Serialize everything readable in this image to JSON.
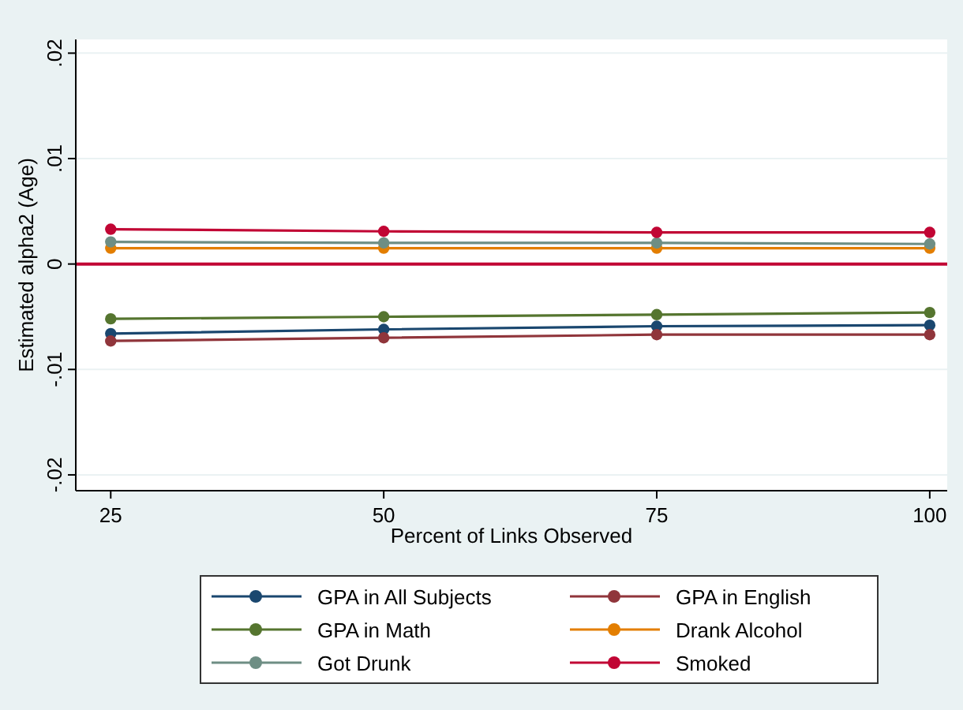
{
  "chart_data": {
    "type": "line",
    "xlabel": "Percent of Links Observed",
    "ylabel": "Estimated alpha2 (Age)",
    "x": [
      25,
      50,
      75,
      100
    ],
    "series": [
      {
        "name": "GPA in All Subjects",
        "color": "#1a476f",
        "values": [
          -0.0066,
          -0.0062,
          -0.0059,
          -0.0058
        ]
      },
      {
        "name": "GPA in English",
        "color": "#90353b",
        "values": [
          -0.0073,
          -0.007,
          -0.0067,
          -0.0067
        ]
      },
      {
        "name": "GPA in Math",
        "color": "#55752f",
        "values": [
          -0.0052,
          -0.005,
          -0.0048,
          -0.0046
        ]
      },
      {
        "name": "Drank Alcohol",
        "color": "#e37e00",
        "values": [
          0.0015,
          0.0015,
          0.0015,
          0.0015
        ]
      },
      {
        "name": "Got Drunk",
        "color": "#6e8e84",
        "values": [
          0.0021,
          0.002,
          0.002,
          0.0019
        ]
      },
      {
        "name": "Smoked",
        "color": "#c10534",
        "values": [
          0.0033,
          0.0031,
          0.003,
          0.003
        ]
      }
    ],
    "xlim": [
      21.8,
      101.6
    ],
    "xticks": [
      25,
      50,
      75,
      100
    ],
    "ylim": [
      -0.0215,
      0.0213
    ],
    "yticks": [
      {
        "value": -0.02,
        "label": "-.02"
      },
      {
        "value": -0.01,
        "label": "-.01"
      },
      0,
      {
        "value": 0.01,
        "label": ".01"
      },
      {
        "value": 0.02,
        "label": ".02"
      }
    ],
    "ref_lines": [
      {
        "axis": "y",
        "value": 0,
        "color": "#c10534"
      }
    ],
    "grid": "y",
    "legend": "bottom",
    "marker": "circle",
    "line_style": "solid"
  }
}
